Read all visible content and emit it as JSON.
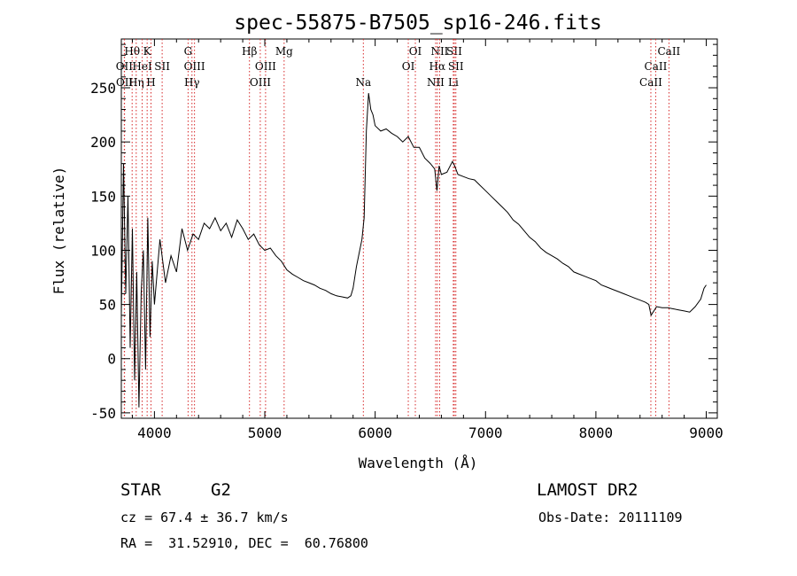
{
  "chart_data": {
    "type": "line",
    "title": "spec-55875-B7505_sp16-246.fits",
    "xlabel": "Wavelength (Å)",
    "ylabel": "Flux (relative)",
    "xlim": [
      3700,
      9100
    ],
    "ylim": [
      -55,
      295
    ],
    "x_ticks": [
      4000,
      5000,
      6000,
      7000,
      8000,
      9000
    ],
    "y_ticks": [
      -50,
      0,
      50,
      100,
      150,
      200,
      250
    ],
    "grid": false,
    "line_color": "#000000",
    "marker_color": "#d62728",
    "series": [
      {
        "x": [
          3700,
          3720,
          3740,
          3760,
          3780,
          3800,
          3820,
          3840,
          3860,
          3880,
          3900,
          3920,
          3940,
          3960,
          3980,
          4000,
          4050,
          4100,
          4150,
          4200,
          4250,
          4300,
          4350,
          4400,
          4450,
          4500,
          4550,
          4600,
          4650,
          4700,
          4750,
          4800,
          4850,
          4900,
          4950,
          5000,
          5050,
          5100,
          5150,
          5200,
          5250,
          5300,
          5350,
          5400,
          5450,
          5500,
          5550,
          5600,
          5650,
          5700,
          5750,
          5780,
          5800,
          5830,
          5860,
          5880,
          5900,
          5920,
          5940,
          5960,
          5980,
          6000,
          6050,
          6100,
          6150,
          6200,
          6250,
          6300,
          6350,
          6400,
          6450,
          6500,
          6540,
          6560,
          6580,
          6600,
          6650,
          6700,
          6720,
          6750,
          6800,
          6850,
          6900,
          6950,
          7000,
          7050,
          7100,
          7150,
          7200,
          7250,
          7300,
          7350,
          7400,
          7450,
          7500,
          7550,
          7600,
          7650,
          7700,
          7750,
          7800,
          7850,
          7900,
          7950,
          8000,
          8050,
          8100,
          8150,
          8200,
          8250,
          8300,
          8350,
          8400,
          8450,
          8480,
          8500,
          8550,
          8600,
          8650,
          8700,
          8750,
          8800,
          8850,
          8900,
          8950,
          8980,
          9000
        ],
        "y": [
          40,
          180,
          60,
          150,
          10,
          120,
          -20,
          80,
          -45,
          60,
          100,
          -10,
          130,
          20,
          90,
          50,
          110,
          70,
          95,
          80,
          120,
          100,
          115,
          110,
          125,
          120,
          130,
          118,
          125,
          112,
          128,
          120,
          110,
          115,
          105,
          100,
          102,
          95,
          90,
          82,
          78,
          75,
          72,
          70,
          68,
          65,
          63,
          60,
          58,
          57,
          56,
          58,
          65,
          85,
          100,
          110,
          130,
          210,
          245,
          230,
          225,
          215,
          210,
          212,
          208,
          205,
          200,
          205,
          195,
          195,
          185,
          180,
          175,
          155,
          178,
          170,
          172,
          182,
          178,
          170,
          168,
          166,
          165,
          160,
          155,
          150,
          145,
          140,
          135,
          128,
          124,
          118,
          112,
          108,
          102,
          98,
          95,
          92,
          88,
          85,
          80,
          78,
          76,
          74,
          72,
          68,
          66,
          64,
          62,
          60,
          58,
          56,
          54,
          52,
          50,
          40,
          48,
          47,
          47,
          46,
          45,
          44,
          43,
          48,
          55,
          65,
          68
        ]
      }
    ],
    "line_markers": [
      {
        "label": "Hθ",
        "x": 3798,
        "row": 0
      },
      {
        "label": "K",
        "x": 3934,
        "row": 0
      },
      {
        "label": "OII",
        "x": 3727,
        "row": 1
      },
      {
        "label": "HeI",
        "x": 3889,
        "row": 1
      },
      {
        "label": "SII",
        "x": 4070,
        "row": 1
      },
      {
        "label": "OII",
        "x": 3729,
        "row": 2
      },
      {
        "label": "Hη",
        "x": 3835,
        "row": 2
      },
      {
        "label": "H",
        "x": 3969,
        "row": 2
      },
      {
        "label": "G",
        "x": 4305,
        "row": 0
      },
      {
        "label": "OIII",
        "x": 4363,
        "row": 1
      },
      {
        "label": "Hγ",
        "x": 4340,
        "row": 2
      },
      {
        "label": "Hβ",
        "x": 4861,
        "row": 0
      },
      {
        "label": "Mg",
        "x": 5175,
        "row": 0
      },
      {
        "label": "OIII",
        "x": 5007,
        "row": 1
      },
      {
        "label": "OIII",
        "x": 4959,
        "row": 2
      },
      {
        "label": "Na",
        "x": 5893,
        "row": 2
      },
      {
        "label": "OI",
        "x": 6364,
        "row": 0
      },
      {
        "label": "OI",
        "x": 6300,
        "row": 1
      },
      {
        "label": "NII",
        "x": 6584,
        "row": 0
      },
      {
        "label": "SII",
        "x": 6717,
        "row": 0
      },
      {
        "label": "Hα",
        "x": 6563,
        "row": 1
      },
      {
        "label": "SII",
        "x": 6731,
        "row": 1
      },
      {
        "label": "NII",
        "x": 6548,
        "row": 2
      },
      {
        "label": "Li",
        "x": 6708,
        "row": 2
      },
      {
        "label": "CaII",
        "x": 8662,
        "row": 0
      },
      {
        "label": "CaII",
        "x": 8542,
        "row": 1
      },
      {
        "label": "CaII",
        "x": 8498,
        "row": 2
      }
    ]
  },
  "info": {
    "class": "STAR",
    "subclass": "G2",
    "cz": "cz = 67.4 ± 36.7 km/s",
    "coords": "RA =  31.52910, DEC =  60.76800",
    "survey": "LAMOST DR2",
    "obs_date": "Obs-Date: 20111109"
  }
}
